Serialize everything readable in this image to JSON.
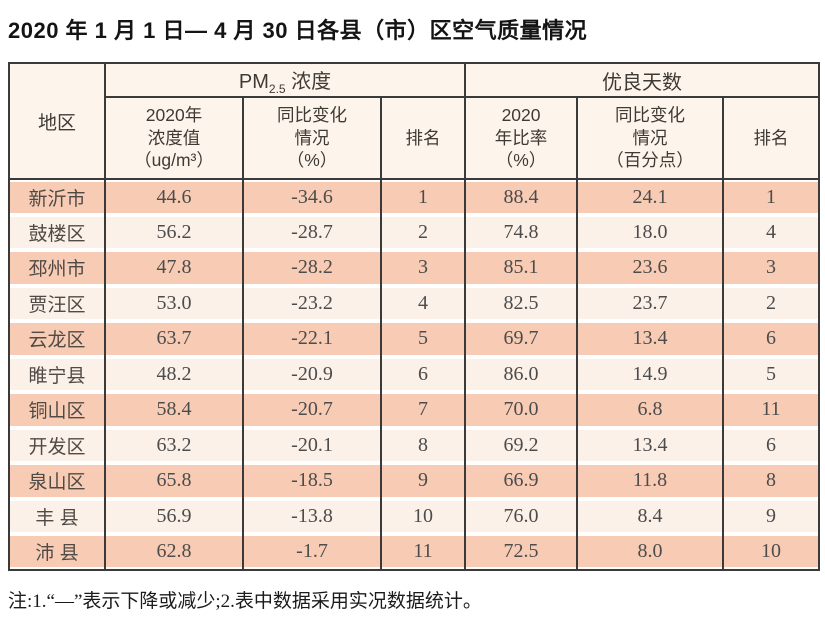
{
  "title": "2020 年 1 月 1 日— 4 月 30 日各县（市）区空气质量情况",
  "theme": {
    "salmon_row": "#f8ccb4",
    "light_row": "#fcf1e9",
    "header_bg": "#fdf5ec",
    "line_color": "#3a3a3a",
    "num_text": "#4c4c4c",
    "head_text": "#3e3a35",
    "title_text": "#141414"
  },
  "table": {
    "region_header": "地区",
    "pm_group": {
      "prefix": "PM",
      "subscript": "2.5",
      "suffix": " 浓度"
    },
    "good_group": {
      "label": "优良天数"
    },
    "subheaders": [
      {
        "key": "pm-value",
        "lines": [
          "2020年",
          "浓度值",
          "（ug/m³）"
        ]
      },
      {
        "key": "pm-change",
        "lines": [
          "同比变化",
          "情况",
          "（%）"
        ]
      },
      {
        "key": "pm-rank",
        "lines": [
          "排名"
        ]
      },
      {
        "key": "good-rate",
        "lines": [
          "2020",
          "年比率",
          "（%）"
        ]
      },
      {
        "key": "good-change",
        "lines": [
          "同比变化",
          "情况",
          "（百分点）"
        ]
      },
      {
        "key": "good-rank",
        "lines": [
          "排名"
        ]
      }
    ],
    "rows": [
      {
        "region": "新沂市",
        "pm_value": "44.6",
        "pm_change": "-34.6",
        "pm_rank": "1",
        "good_rate": "88.4",
        "good_change": "24.1",
        "good_rank": "1"
      },
      {
        "region": "鼓楼区",
        "pm_value": "56.2",
        "pm_change": "-28.7",
        "pm_rank": "2",
        "good_rate": "74.8",
        "good_change": "18.0",
        "good_rank": "4"
      },
      {
        "region": "邳州市",
        "pm_value": "47.8",
        "pm_change": "-28.2",
        "pm_rank": "3",
        "good_rate": "85.1",
        "good_change": "23.6",
        "good_rank": "3"
      },
      {
        "region": "贾汪区",
        "pm_value": "53.0",
        "pm_change": "-23.2",
        "pm_rank": "4",
        "good_rate": "82.5",
        "good_change": "23.7",
        "good_rank": "2"
      },
      {
        "region": "云龙区",
        "pm_value": "63.7",
        "pm_change": "-22.1",
        "pm_rank": "5",
        "good_rate": "69.7",
        "good_change": "13.4",
        "good_rank": "6"
      },
      {
        "region": "睢宁县",
        "pm_value": "48.2",
        "pm_change": "-20.9",
        "pm_rank": "6",
        "good_rate": "86.0",
        "good_change": "14.9",
        "good_rank": "5"
      },
      {
        "region": "铜山区",
        "pm_value": "58.4",
        "pm_change": "-20.7",
        "pm_rank": "7",
        "good_rate": "70.0",
        "good_change": "6.8",
        "good_rank": "11"
      },
      {
        "region": "开发区",
        "pm_value": "63.2",
        "pm_change": "-20.1",
        "pm_rank": "8",
        "good_rate": "69.2",
        "good_change": "13.4",
        "good_rank": "6"
      },
      {
        "region": "泉山区",
        "pm_value": "65.8",
        "pm_change": "-18.5",
        "pm_rank": "9",
        "good_rate": "66.9",
        "good_change": "11.8",
        "good_rank": "8"
      },
      {
        "region": "丰 县",
        "pm_value": "56.9",
        "pm_change": "-13.8",
        "pm_rank": "10",
        "good_rate": "76.0",
        "good_change": "8.4",
        "good_rank": "9"
      },
      {
        "region": "沛 县",
        "pm_value": "62.8",
        "pm_change": "-1.7",
        "pm_rank": "11",
        "good_rate": "72.5",
        "good_change": "8.0",
        "good_rank": "10"
      }
    ]
  },
  "note": "注:1.“—”表示下降或减少;2.表中数据采用实况数据统计。"
}
